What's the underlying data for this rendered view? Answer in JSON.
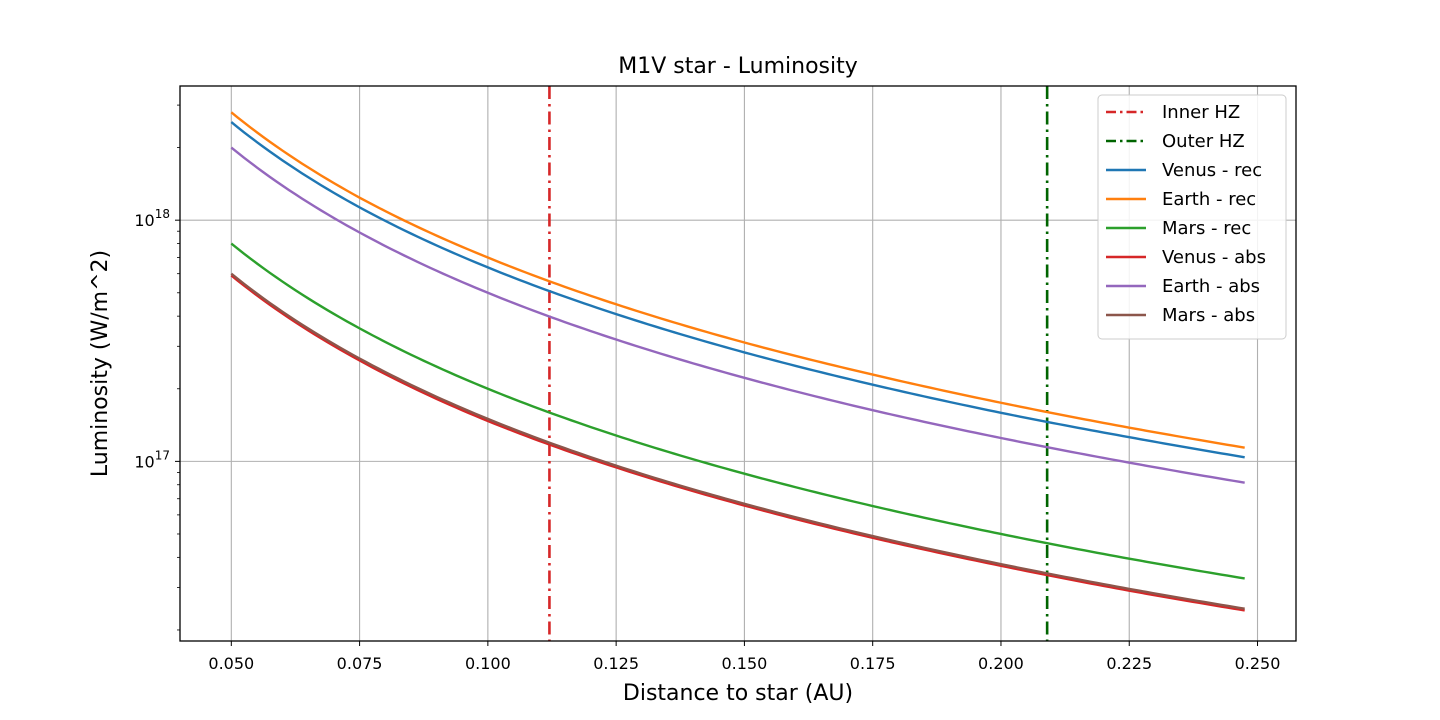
{
  "chart_data": {
    "type": "line",
    "title": "M1V star - Luminosity",
    "xlabel": "Distance to star (AU)",
    "ylabel": "Luminosity (W/m^2)",
    "xlim": [
      0.04,
      0.2575
    ],
    "ylim": [
      1.8e+16,
      3.6e+18
    ],
    "yscale": "log",
    "grid": true,
    "legend_position": "upper right",
    "x_ticks": [
      {
        "value": 0.05,
        "label": "0.050"
      },
      {
        "value": 0.075,
        "label": "0.075"
      },
      {
        "value": 0.1,
        "label": "0.100"
      },
      {
        "value": 0.125,
        "label": "0.125"
      },
      {
        "value": 0.15,
        "label": "0.150"
      },
      {
        "value": 0.175,
        "label": "0.175"
      },
      {
        "value": 0.2,
        "label": "0.200"
      },
      {
        "value": 0.225,
        "label": "0.225"
      },
      {
        "value": 0.25,
        "label": "0.250"
      }
    ],
    "y_major_ticks": [
      {
        "value": 1e+17,
        "base": "10",
        "exp": "17"
      },
      {
        "value": 1e+18,
        "base": "10",
        "exp": "18"
      }
    ],
    "vlines": [
      {
        "name": "Inner HZ",
        "x": 0.112,
        "color": "#d62728",
        "style": "dashdot"
      },
      {
        "name": "Outer HZ",
        "x": 0.209,
        "color": "#006400",
        "style": "dashdot"
      }
    ],
    "series": [
      {
        "name": "Venus - rec",
        "color": "#1f77b4",
        "x": [
          0.05,
          0.075,
          0.1,
          0.125,
          0.15,
          0.175,
          0.2,
          0.225,
          0.2475
        ],
        "values": [
          2.55e+18,
          1.13e+18,
          6.37e+17,
          4.08e+17,
          2.83e+17,
          2.08e+17,
          1.59e+17,
          1.26e+17,
          1.04e+17
        ]
      },
      {
        "name": "Earth - rec",
        "color": "#ff7f0e",
        "x": [
          0.05,
          0.075,
          0.1,
          0.125,
          0.15,
          0.175,
          0.2,
          0.225,
          0.2475
        ],
        "values": [
          2.8e+18,
          1.24e+18,
          7e+17,
          4.48e+17,
          3.11e+17,
          2.29e+17,
          1.75e+17,
          1.38e+17,
          1.14e+17
        ]
      },
      {
        "name": "Mars - rec",
        "color": "#2ca02c",
        "x": [
          0.05,
          0.075,
          0.1,
          0.125,
          0.15,
          0.175,
          0.2,
          0.225,
          0.2475
        ],
        "values": [
          8e+17,
          3.56e+17,
          2e+17,
          1.28e+17,
          8.89e+16,
          6.53e+16,
          5e+16,
          3.95e+16,
          3.27e+16
        ]
      },
      {
        "name": "Venus - abs",
        "color": "#d62728",
        "x": [
          0.05,
          0.075,
          0.1,
          0.125,
          0.15,
          0.175,
          0.2,
          0.225,
          0.2475
        ],
        "values": [
          5.9e+17,
          2.62e+17,
          1.47e+17,
          9.44e+16,
          6.56e+16,
          4.82e+16,
          3.69e+16,
          2.91e+16,
          2.41e+16
        ]
      },
      {
        "name": "Earth - abs",
        "color": "#9467bd",
        "x": [
          0.05,
          0.075,
          0.1,
          0.125,
          0.15,
          0.175,
          0.2,
          0.225,
          0.2475
        ],
        "values": [
          2e+18,
          8.89e+17,
          5e+17,
          3.2e+17,
          2.22e+17,
          1.63e+17,
          1.25e+17,
          9.88e+16,
          8.16e+16
        ]
      },
      {
        "name": "Mars - abs",
        "color": "#8c564b",
        "x": [
          0.05,
          0.075,
          0.1,
          0.125,
          0.15,
          0.175,
          0.2,
          0.225,
          0.2475
        ],
        "values": [
          6e+17,
          2.67e+17,
          1.5e+17,
          9.6e+16,
          6.67e+16,
          4.9e+16,
          3.75e+16,
          2.96e+16,
          2.45e+16
        ]
      }
    ]
  }
}
